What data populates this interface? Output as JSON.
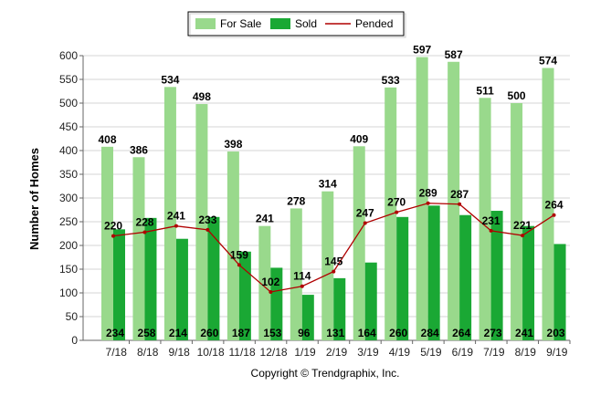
{
  "chart_data": {
    "type": "bar",
    "categories": [
      "7/18",
      "8/18",
      "9/18",
      "10/18",
      "11/18",
      "12/18",
      "1/19",
      "2/19",
      "3/19",
      "4/19",
      "5/19",
      "6/19",
      "7/19",
      "8/19",
      "9/19"
    ],
    "series": [
      {
        "name": "For Sale",
        "type": "bar",
        "color": "#99d98c",
        "values": [
          408,
          386,
          534,
          498,
          398,
          241,
          278,
          314,
          409,
          533,
          597,
          587,
          511,
          500,
          574
        ]
      },
      {
        "name": "Sold",
        "type": "bar",
        "color": "#1aa834",
        "values": [
          234,
          258,
          214,
          260,
          187,
          153,
          96,
          131,
          164,
          260,
          284,
          264,
          273,
          241,
          203
        ]
      },
      {
        "name": "Pended",
        "type": "line",
        "color": "#b00000",
        "values": [
          220,
          228,
          241,
          233,
          159,
          102,
          114,
          145,
          247,
          270,
          289,
          287,
          231,
          221,
          264
        ]
      }
    ],
    "ylabel": "Number of Homes",
    "xlabel": "",
    "ylim": [
      0,
      600
    ],
    "yticks": [
      0,
      50,
      100,
      150,
      200,
      250,
      300,
      350,
      400,
      450,
      500,
      550,
      600
    ],
    "grid": true,
    "legend": "top-center",
    "footer": "Copyright © Trendgraphix, Inc."
  }
}
